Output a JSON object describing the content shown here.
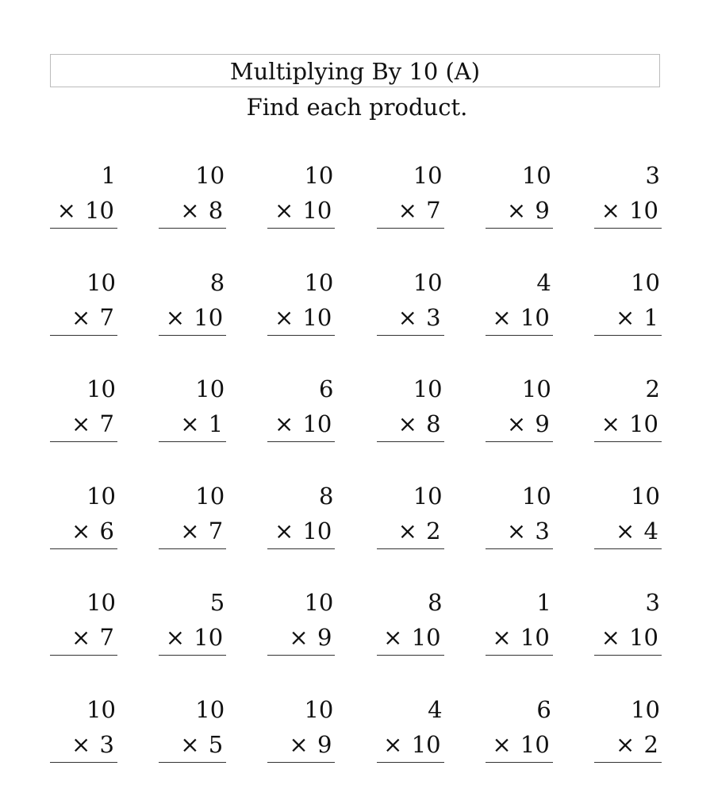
{
  "header": {
    "title": "Multiplying By 10 (A)",
    "instructions": "Find each product."
  },
  "operator": "×",
  "problems": [
    [
      {
        "top": "1",
        "bottom": "10"
      },
      {
        "top": "10",
        "bottom": "8"
      },
      {
        "top": "10",
        "bottom": "10"
      },
      {
        "top": "10",
        "bottom": "7"
      },
      {
        "top": "10",
        "bottom": "9"
      },
      {
        "top": "3",
        "bottom": "10"
      }
    ],
    [
      {
        "top": "10",
        "bottom": "7"
      },
      {
        "top": "8",
        "bottom": "10"
      },
      {
        "top": "10",
        "bottom": "10"
      },
      {
        "top": "10",
        "bottom": "3"
      },
      {
        "top": "4",
        "bottom": "10"
      },
      {
        "top": "10",
        "bottom": "1"
      }
    ],
    [
      {
        "top": "10",
        "bottom": "7"
      },
      {
        "top": "10",
        "bottom": "1"
      },
      {
        "top": "6",
        "bottom": "10"
      },
      {
        "top": "10",
        "bottom": "8"
      },
      {
        "top": "10",
        "bottom": "9"
      },
      {
        "top": "2",
        "bottom": "10"
      }
    ],
    [
      {
        "top": "10",
        "bottom": "6"
      },
      {
        "top": "10",
        "bottom": "7"
      },
      {
        "top": "8",
        "bottom": "10"
      },
      {
        "top": "10",
        "bottom": "2"
      },
      {
        "top": "10",
        "bottom": "3"
      },
      {
        "top": "10",
        "bottom": "4"
      }
    ],
    [
      {
        "top": "10",
        "bottom": "7"
      },
      {
        "top": "5",
        "bottom": "10"
      },
      {
        "top": "10",
        "bottom": "9"
      },
      {
        "top": "8",
        "bottom": "10"
      },
      {
        "top": "1",
        "bottom": "10"
      },
      {
        "top": "3",
        "bottom": "10"
      }
    ],
    [
      {
        "top": "10",
        "bottom": "3"
      },
      {
        "top": "10",
        "bottom": "5"
      },
      {
        "top": "10",
        "bottom": "9"
      },
      {
        "top": "4",
        "bottom": "10"
      },
      {
        "top": "6",
        "bottom": "10"
      },
      {
        "top": "10",
        "bottom": "2"
      }
    ]
  ]
}
